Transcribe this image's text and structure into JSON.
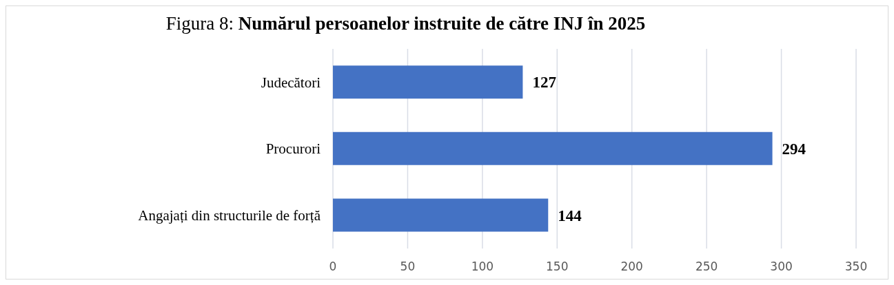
{
  "chart_data": {
    "type": "bar",
    "orientation": "horizontal",
    "title": "Figura 8: Numărul persoanelor instruite de către INJ în 2025",
    "categories": [
      "Judecători",
      "Procurori",
      "Angajați din structurile de forță"
    ],
    "values": [
      127,
      294,
      144
    ],
    "color": "#4472c4",
    "xlim": [
      0,
      350
    ],
    "xticks": [
      0,
      50,
      100,
      150,
      200,
      250,
      300,
      350
    ],
    "grid": "x",
    "data_labels": true
  }
}
